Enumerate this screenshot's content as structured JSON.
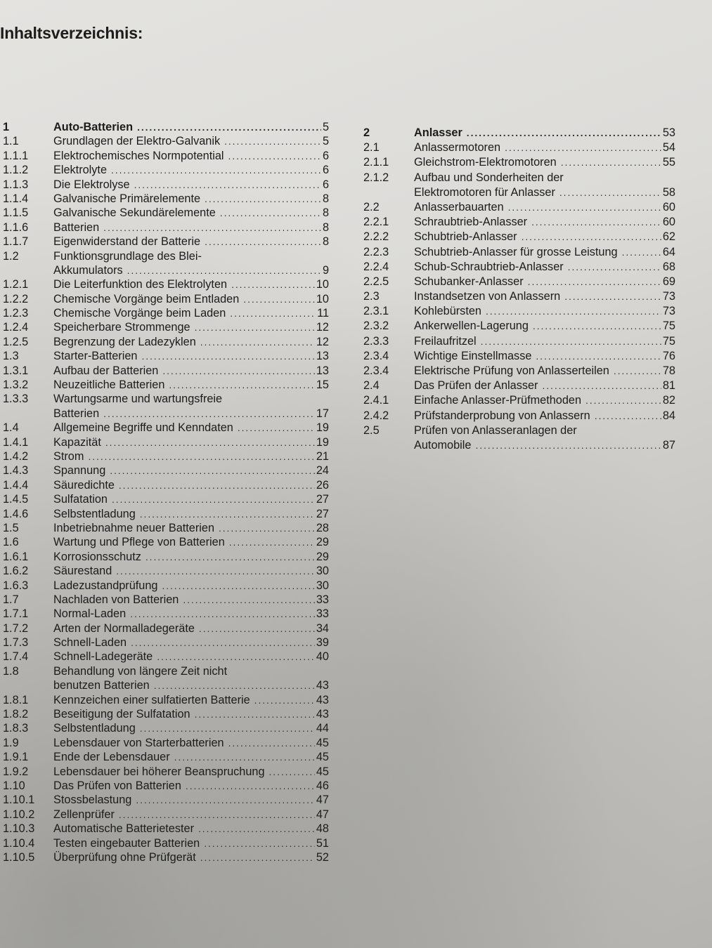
{
  "page_title": "Inhaltsverzeichnis:",
  "columns": [
    {
      "entries": [
        {
          "num": "1",
          "lines": [
            "Auto-Batterien"
          ],
          "page": "5",
          "bold": true
        },
        {
          "num": "1.1",
          "lines": [
            "Grundlagen der Elektro-Galvanik"
          ],
          "page": "5"
        },
        {
          "num": "1.1.1",
          "lines": [
            "Elektrochemisches Normpotential"
          ],
          "page": "6"
        },
        {
          "num": "1.1.2",
          "lines": [
            "Elektrolyte"
          ],
          "page": "6"
        },
        {
          "num": "1.1.3",
          "lines": [
            "Die Elektrolyse"
          ],
          "page": "6"
        },
        {
          "num": "1.1.4",
          "lines": [
            "Galvanische Primärelemente"
          ],
          "page": "8"
        },
        {
          "num": "1.1.5",
          "lines": [
            "Galvanische Sekundärelemente"
          ],
          "page": "8"
        },
        {
          "num": "1.1.6",
          "lines": [
            "Batterien"
          ],
          "page": "8"
        },
        {
          "num": "1.1.7",
          "lines": [
            "Eigenwiderstand der Batterie"
          ],
          "page": "8"
        },
        {
          "num": "1.2",
          "lines": [
            "Funktionsgrundlage des Blei-",
            "Akkumulators"
          ],
          "page": "9"
        },
        {
          "num": "1.2.1",
          "lines": [
            "Die Leiterfunktion des Elektrolyten"
          ],
          "page": "10"
        },
        {
          "num": "1.2.2",
          "lines": [
            "Chemische Vorgänge beim Entladen"
          ],
          "page": "10"
        },
        {
          "num": "1.2.3",
          "lines": [
            "Chemische Vorgänge beim Laden"
          ],
          "page": "11"
        },
        {
          "num": "1.2.4",
          "lines": [
            "Speicherbare Strommenge"
          ],
          "page": "12"
        },
        {
          "num": "1.2.5",
          "lines": [
            "Begrenzung der Ladezyklen"
          ],
          "page": "12"
        },
        {
          "num": "1.3",
          "lines": [
            "Starter-Batterien"
          ],
          "page": "13"
        },
        {
          "num": "1.3.1",
          "lines": [
            "Aufbau der Batterien"
          ],
          "page": "13"
        },
        {
          "num": "1.3.2",
          "lines": [
            "Neuzeitliche Batterien"
          ],
          "page": "15"
        },
        {
          "num": "1.3.3",
          "lines": [
            "Wartungsarme und wartungsfreie",
            "Batterien"
          ],
          "page": "17"
        },
        {
          "num": "1.4",
          "lines": [
            "Allgemeine Begriffe und Kenndaten"
          ],
          "page": "19"
        },
        {
          "num": "1.4.1",
          "lines": [
            "Kapazität"
          ],
          "page": "19"
        },
        {
          "num": "1.4.2",
          "lines": [
            "Strom"
          ],
          "page": "21"
        },
        {
          "num": "1.4.3",
          "lines": [
            "Spannung"
          ],
          "page": "24"
        },
        {
          "num": "1.4.4",
          "lines": [
            "Säuredichte"
          ],
          "page": "26"
        },
        {
          "num": "1.4.5",
          "lines": [
            "Sulfatation"
          ],
          "page": "27"
        },
        {
          "num": "1.4.6",
          "lines": [
            "Selbstentladung"
          ],
          "page": "27"
        },
        {
          "num": "1.5",
          "lines": [
            "Inbetriebnahme neuer Batterien"
          ],
          "page": "28"
        },
        {
          "num": "1.6",
          "lines": [
            "Wartung und Pflege von Batterien"
          ],
          "page": "29"
        },
        {
          "num": "1.6.1",
          "lines": [
            "Korrosionsschutz"
          ],
          "page": "29"
        },
        {
          "num": "1.6.2",
          "lines": [
            "Säurestand"
          ],
          "page": "30"
        },
        {
          "num": "1.6.3",
          "lines": [
            "Ladezustandprüfung"
          ],
          "page": "30"
        },
        {
          "num": "1.7",
          "lines": [
            "Nachladen von Batterien"
          ],
          "page": "33"
        },
        {
          "num": "1.7.1",
          "lines": [
            "Normal-Laden"
          ],
          "page": "33"
        },
        {
          "num": "1.7.2",
          "lines": [
            "Arten der Normalladegeräte"
          ],
          "page": "34"
        },
        {
          "num": "1.7.3",
          "lines": [
            "Schnell-Laden"
          ],
          "page": "39"
        },
        {
          "num": "1.7.4",
          "lines": [
            "Schnell-Ladegeräte"
          ],
          "page": "40"
        },
        {
          "num": "1.8",
          "lines": [
            "Behandlung von längere Zeit nicht",
            "benutzen Batterien"
          ],
          "page": "43"
        },
        {
          "num": "1.8.1",
          "lines": [
            "Kennzeichen einer sulfatierten Batterie"
          ],
          "page": "43"
        },
        {
          "num": "1.8.2",
          "lines": [
            "Beseitigung der Sulfatation"
          ],
          "page": "43"
        },
        {
          "num": "1.8.3",
          "lines": [
            "Selbstentladung"
          ],
          "page": "44"
        },
        {
          "num": "1.9",
          "lines": [
            "Lebensdauer von Starterbatterien"
          ],
          "page": "45"
        },
        {
          "num": "1.9.1",
          "lines": [
            "Ende der Lebensdauer"
          ],
          "page": "45"
        },
        {
          "num": "1.9.2",
          "lines": [
            "Lebensdauer bei höherer Beanspruchung"
          ],
          "page": "45"
        },
        {
          "num": "1.10",
          "lines": [
            "Das Prüfen von Batterien"
          ],
          "page": "46"
        },
        {
          "num": "1.10.1",
          "lines": [
            "Stossbelastung"
          ],
          "page": "47"
        },
        {
          "num": "1.10.2",
          "lines": [
            "Zellenprüfer"
          ],
          "page": "47"
        },
        {
          "num": "1.10.3",
          "lines": [
            "Automatische Batterietester"
          ],
          "page": "48"
        },
        {
          "num": "1.10.4",
          "lines": [
            "Testen eingebauter Batterien"
          ],
          "page": "51"
        },
        {
          "num": "1.10.5",
          "lines": [
            "Überprüfung ohne Prüfgerät"
          ],
          "page": "52"
        }
      ]
    },
    {
      "entries": [
        {
          "num": "2",
          "lines": [
            "Anlasser"
          ],
          "page": "53",
          "bold": true
        },
        {
          "num": "2.1",
          "lines": [
            "Anlassermotoren"
          ],
          "page": "54"
        },
        {
          "num": "2.1.1",
          "lines": [
            "Gleichstrom-Elektromotoren"
          ],
          "page": "55"
        },
        {
          "num": "2.1.2",
          "lines": [
            "Aufbau und Sonderheiten der",
            "Elektromotoren für Anlasser"
          ],
          "page": "58"
        },
        {
          "num": "2.2",
          "lines": [
            "Anlasserbauarten"
          ],
          "page": "60"
        },
        {
          "num": "2.2.1",
          "lines": [
            "Schraubtrieb-Anlasser"
          ],
          "page": "60"
        },
        {
          "num": "2.2.2",
          "lines": [
            "Schubtrieb-Anlasser"
          ],
          "page": "62"
        },
        {
          "num": "2.2.3",
          "lines": [
            "Schubtrieb-Anlasser für grosse Leistung"
          ],
          "page": "64"
        },
        {
          "num": "2.2.4",
          "lines": [
            "Schub-Schraubtrieb-Anlasser"
          ],
          "page": "68"
        },
        {
          "num": "2.2.5",
          "lines": [
            "Schubanker-Anlasser"
          ],
          "page": "69"
        },
        {
          "num": "2.3",
          "lines": [
            "Instandsetzen von Anlassern"
          ],
          "page": "73"
        },
        {
          "num": "2.3.1",
          "lines": [
            "Kohlebürsten"
          ],
          "page": "73"
        },
        {
          "num": "2.3.2",
          "lines": [
            "Ankerwellen-Lagerung"
          ],
          "page": "75"
        },
        {
          "num": "2.3.3",
          "lines": [
            "Freilaufritzel"
          ],
          "page": "75"
        },
        {
          "num": "2.3.4",
          "lines": [
            "Wichtige Einstellmasse"
          ],
          "page": "76"
        },
        {
          "num": "2.3.4",
          "lines": [
            "Elektrische Prüfung von Anlasserteilen"
          ],
          "page": "78"
        },
        {
          "num": "2.4",
          "lines": [
            "Das Prüfen der Anlasser"
          ],
          "page": "81"
        },
        {
          "num": "2.4.1",
          "lines": [
            "Einfache Anlasser-Prüfmethoden"
          ],
          "page": "82"
        },
        {
          "num": "2.4.2",
          "lines": [
            "Prüfstanderprobung von Anlassern"
          ],
          "page": "84"
        },
        {
          "num": "2.5",
          "lines": [
            "Prüfen von Anlasseranlagen der",
            "Automobile"
          ],
          "page": "87"
        }
      ]
    }
  ]
}
